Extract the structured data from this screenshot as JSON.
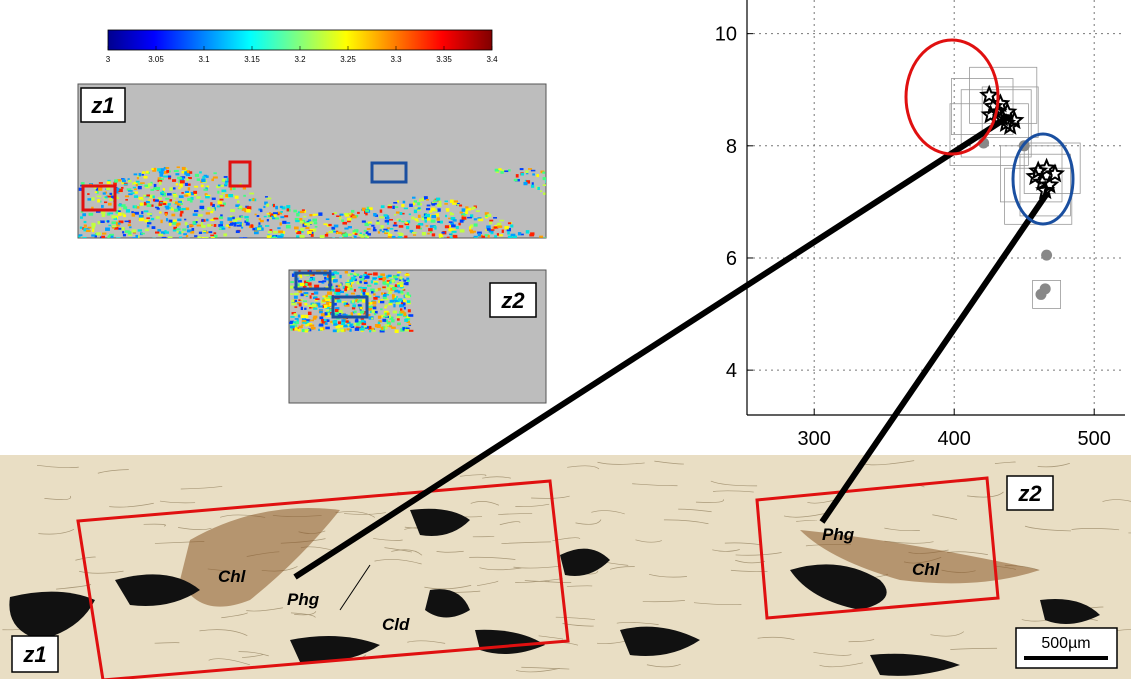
{
  "colorbar": {
    "ticks": [
      3,
      3.05,
      3.1,
      3.15,
      3.2,
      3.25,
      3.3,
      3.35,
      3.4
    ]
  },
  "maps": [
    {
      "label": "z1"
    },
    {
      "label": "z2"
    }
  ],
  "chart_data": {
    "type": "scatter",
    "xlim": [
      252,
      522
    ],
    "ylim": [
      3.2,
      10.6
    ],
    "xticks": [
      300,
      400,
      500
    ],
    "yticks": [
      4,
      6,
      8,
      10
    ],
    "grid": true,
    "series": [
      {
        "marker": "box",
        "color": "#999999",
        "x": [
          420,
          430,
          440,
          425,
          435,
          455,
          465,
          470,
          460,
          466
        ],
        "values": [
          8.7,
          8.4,
          8.6,
          8.2,
          8.9,
          7.5,
          7.3,
          7.6,
          7.1,
          5.35
        ],
        "xerr": [
          22,
          25,
          20,
          28,
          24,
          22,
          18,
          20,
          24,
          10
        ],
        "yerr": [
          0.5,
          0.6,
          0.45,
          0.55,
          0.5,
          0.5,
          0.55,
          0.45,
          0.5,
          0.25
        ]
      },
      {
        "marker": "circle",
        "color": "#888888",
        "x": [
          466,
          465,
          462,
          450,
          421
        ],
        "values": [
          6.05,
          5.45,
          5.35,
          8.0,
          8.05
        ]
      },
      {
        "marker": "star",
        "color": "#000000",
        "x": [
          425,
          428,
          431,
          434,
          437,
          440,
          426,
          433,
          438,
          443,
          460,
          466,
          472,
          463,
          468,
          458,
          465
        ],
        "values": [
          8.9,
          8.7,
          8.6,
          8.5,
          8.4,
          8.35,
          8.55,
          8.75,
          8.6,
          8.45,
          7.55,
          7.6,
          7.5,
          7.35,
          7.3,
          7.45,
          7.2
        ]
      }
    ]
  },
  "micrograph": {
    "zones": [
      "z1",
      "z2"
    ],
    "labels": [
      "Chl",
      "Phg",
      "Cld",
      "Phg",
      "Chl"
    ],
    "scale_bar": "500µm"
  }
}
